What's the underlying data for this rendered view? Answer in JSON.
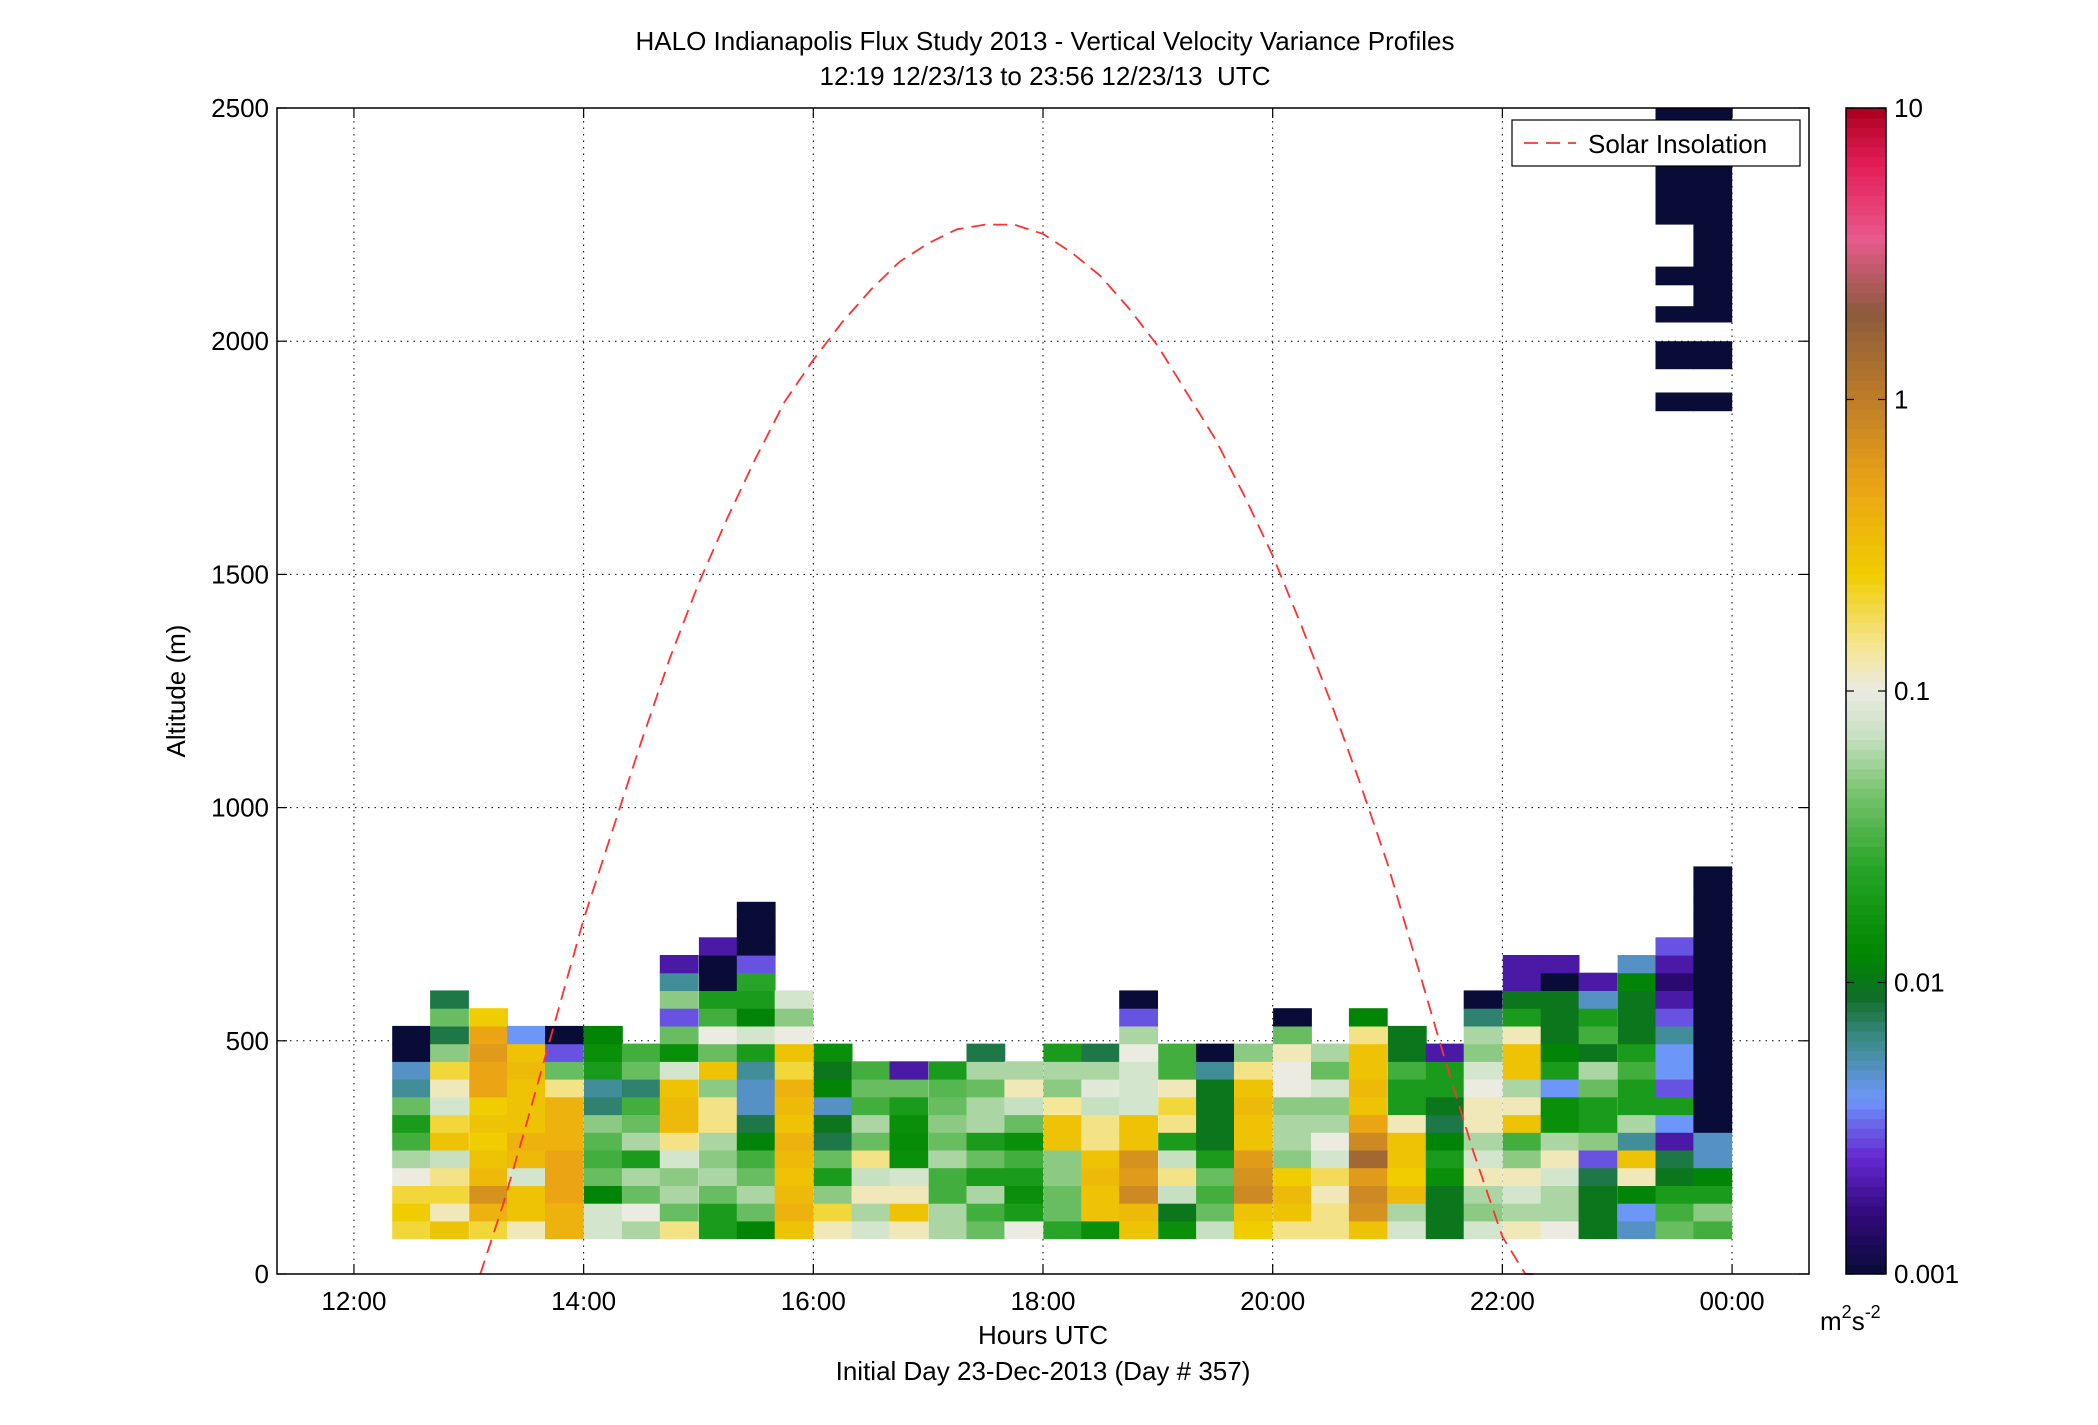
{
  "chart_data": {
    "type": "heatmap",
    "title": "HALO Indianapolis Flux Study 2013 - Vertical Velocity Variance Profiles",
    "subtitle": "12:19 12/23/13 to 23:56 12/23/13  UTC",
    "xlabel": "Hours UTC",
    "xlabel2": "Initial Day 23-Dec-2013 (Day # 357)",
    "ylabel": "Altitude (m)",
    "xlim": [
      11.33,
      24.67
    ],
    "ylim": [
      0,
      2500
    ],
    "x_ticks": [
      {
        "value": 12,
        "label": "12:00"
      },
      {
        "value": 14,
        "label": "14:00"
      },
      {
        "value": 16,
        "label": "16:00"
      },
      {
        "value": 18,
        "label": "18:00"
      },
      {
        "value": 20,
        "label": "20:00"
      },
      {
        "value": 22,
        "label": "22:00"
      },
      {
        "value": 24,
        "label": "00:00"
      }
    ],
    "y_ticks": [
      {
        "value": 0,
        "label": "0"
      },
      {
        "value": 500,
        "label": "500"
      },
      {
        "value": 1000,
        "label": "1000"
      },
      {
        "value": 1500,
        "label": "1500"
      },
      {
        "value": 2000,
        "label": "2000"
      },
      {
        "value": 2500,
        "label": "2500"
      }
    ],
    "grid": true,
    "legend": {
      "placement": "top-right",
      "entries": [
        {
          "label": "Solar Insolation",
          "color": "#ff3030",
          "style": "dashed"
        }
      ]
    },
    "colorbar": {
      "scale": "log",
      "range": [
        0.001,
        10
      ],
      "ticks": [
        {
          "value": 0.001,
          "label": "0.001"
        },
        {
          "value": 0.01,
          "label": "0.01"
        },
        {
          "value": 0.1,
          "label": "0.1"
        },
        {
          "value": 1,
          "label": "1"
        },
        {
          "value": 10,
          "label": "10"
        }
      ],
      "unit_base": "m",
      "unit_sup1": "2",
      "unit_mid": "s",
      "unit_sup2": "-2"
    },
    "time_bin_hours": 0.333,
    "altitude_bin_m": 38,
    "times": [
      12.5,
      12.83,
      13.17,
      13.5,
      13.83,
      14.17,
      14.5,
      14.83,
      15.17,
      15.5,
      15.83,
      16.17,
      16.5,
      16.83,
      17.17,
      17.5,
      17.83,
      18.17,
      18.5,
      18.83,
      19.17,
      19.5,
      19.83,
      20.17,
      20.5,
      20.83,
      21.17,
      21.5,
      21.83,
      22.17,
      22.5,
      22.83,
      23.17,
      23.5,
      23.83
    ],
    "profiles": [
      {
        "time": 12.5,
        "bottom_m": 76,
        "values": [
          0.2,
          0.25,
          0.2,
          0.1,
          0.06,
          0.03,
          0.02,
          0.04,
          0.006,
          0.005,
          0.001,
          0.001
        ]
      },
      {
        "time": 12.83,
        "bottom_m": 76,
        "values": [
          0.3,
          0.12,
          0.2,
          0.15,
          0.07,
          0.3,
          0.2,
          0.08,
          0.12,
          0.2,
          0.05,
          0.008,
          0.04,
          0.008
        ]
      },
      {
        "time": 13.17,
        "bottom_m": 76,
        "values": [
          0.2,
          0.4,
          0.7,
          0.35,
          0.3,
          0.25,
          0.3,
          0.25,
          0.5,
          0.5,
          0.6,
          0.5,
          0.25
        ]
      },
      {
        "time": 13.5,
        "bottom_m": 76,
        "values": [
          0.12,
          0.3,
          0.3,
          0.08,
          0.35,
          0.4,
          0.3,
          0.3,
          0.3,
          0.35,
          0.3,
          0.004
        ]
      },
      {
        "time": 13.83,
        "bottom_m": 76,
        "values": [
          0.4,
          0.4,
          0.5,
          0.5,
          0.5,
          0.4,
          0.4,
          0.4,
          0.15,
          0.04,
          0.003,
          0.001
        ]
      },
      {
        "time": 14.17,
        "bottom_m": 76,
        "values": [
          0.08,
          0.08,
          0.012,
          0.04,
          0.03,
          0.035,
          0.05,
          0.007,
          0.006,
          0.02,
          0.015,
          0.012
        ]
      },
      {
        "time": 14.5,
        "bottom_m": 76,
        "values": [
          0.06,
          0.1,
          0.04,
          0.06,
          0.02,
          0.06,
          0.04,
          0.03,
          0.007,
          0.04,
          0.03
        ]
      },
      {
        "time": 14.83,
        "bottom_m": 76,
        "values": [
          0.15,
          0.04,
          0.06,
          0.05,
          0.08,
          0.15,
          0.35,
          0.35,
          0.3,
          0.08,
          0.015,
          0.04,
          0.003,
          0.05,
          0.006,
          0.002
        ]
      },
      {
        "time": 15.17,
        "bottom_m": 76,
        "values": [
          0.02,
          0.02,
          0.04,
          0.06,
          0.05,
          0.06,
          0.15,
          0.15,
          0.05,
          0.3,
          0.04,
          0.1,
          0.03,
          0.02,
          0.001,
          0.001,
          0.002
        ]
      },
      {
        "time": 15.5,
        "bottom_m": 76,
        "values": [
          0.012,
          0.04,
          0.06,
          0.04,
          0.03,
          0.012,
          0.008,
          0.005,
          0.005,
          0.006,
          0.02,
          0.08,
          0.012,
          0.02,
          0.025,
          0.003,
          0.001,
          0.001,
          0.001
        ]
      },
      {
        "time": 15.83,
        "bottom_m": 76,
        "values": [
          0.3,
          0.4,
          0.35,
          0.3,
          0.35,
          0.4,
          0.3,
          0.35,
          0.4,
          0.2,
          0.3,
          0.1,
          0.05,
          0.08
        ]
      },
      {
        "time": 16.17,
        "bottom_m": 76,
        "values": [
          0.12,
          0.2,
          0.05,
          0.02,
          0.04,
          0.008,
          0.01,
          0.005,
          0.012,
          0.01,
          0.015
        ]
      },
      {
        "time": 16.5,
        "bottom_m": 76,
        "values": [
          0.08,
          0.06,
          0.12,
          0.07,
          0.15,
          0.04,
          0.06,
          0.03,
          0.04,
          0.03
        ]
      },
      {
        "time": 16.83,
        "bottom_m": 76,
        "values": [
          0.12,
          0.3,
          0.12,
          0.08,
          0.015,
          0.014,
          0.015,
          0.02,
          0.04,
          0.002
        ]
      },
      {
        "time": 17.17,
        "bottom_m": 76,
        "values": [
          0.06,
          0.06,
          0.03,
          0.03,
          0.06,
          0.04,
          0.05,
          0.04,
          0.035,
          0.02
        ]
      },
      {
        "time": 17.5,
        "bottom_m": 76,
        "values": [
          0.04,
          0.03,
          0.06,
          0.02,
          0.04,
          0.02,
          0.06,
          0.06,
          0.04,
          0.06,
          0.008
        ]
      },
      {
        "time": 17.83,
        "bottom_m": 76,
        "values": [
          0.1,
          0.02,
          0.015,
          0.02,
          0.03,
          0.015,
          0.04,
          0.07,
          0.12,
          0.06
        ]
      },
      {
        "time": 18.17,
        "bottom_m": 76,
        "values": [
          0.025,
          0.04,
          0.04,
          0.05,
          0.05,
          0.3,
          0.3,
          0.14,
          0.05,
          0.06,
          0.02
        ]
      },
      {
        "time": 18.5,
        "bottom_m": 76,
        "values": [
          0.015,
          0.3,
          0.3,
          0.35,
          0.3,
          0.15,
          0.15,
          0.07,
          0.09,
          0.06,
          0.008
        ]
      },
      {
        "time": 18.83,
        "bottom_m": 76,
        "values": [
          0.3,
          0.35,
          0.8,
          0.6,
          0.7,
          0.3,
          0.3,
          0.08,
          0.08,
          0.08,
          0.1,
          0.06,
          0.003,
          0.001
        ]
      },
      {
        "time": 19.17,
        "bottom_m": 76,
        "values": [
          0.015,
          0.01,
          0.07,
          0.15,
          0.07,
          0.02,
          0.15,
          0.2,
          0.12,
          0.03,
          0.03
        ]
      },
      {
        "time": 19.5,
        "bottom_m": 76,
        "values": [
          0.07,
          0.04,
          0.03,
          0.04,
          0.02,
          0.01,
          0.01,
          0.01,
          0.01,
          0.006,
          0.001
        ]
      },
      {
        "time": 19.83,
        "bottom_m": 76,
        "values": [
          0.25,
          0.3,
          0.8,
          0.7,
          0.6,
          0.3,
          0.3,
          0.35,
          0.3,
          0.15,
          0.05
        ]
      },
      {
        "time": 20.17,
        "bottom_m": 76,
        "values": [
          0.15,
          0.3,
          0.35,
          0.25,
          0.05,
          0.06,
          0.06,
          0.05,
          0.1,
          0.1,
          0.12,
          0.04,
          0.001
        ]
      },
      {
        "time": 20.5,
        "bottom_m": 76,
        "values": [
          0.15,
          0.15,
          0.12,
          0.18,
          0.08,
          0.1,
          0.06,
          0.05,
          0.08,
          0.04,
          0.06
        ]
      },
      {
        "time": 20.83,
        "bottom_m": 76,
        "values": [
          0.3,
          0.7,
          0.8,
          0.6,
          1.5,
          0.8,
          0.5,
          0.3,
          0.35,
          0.3,
          0.3,
          0.15,
          0.012
        ]
      },
      {
        "time": 21.17,
        "bottom_m": 76,
        "values": [
          0.08,
          0.06,
          0.35,
          0.25,
          0.3,
          0.3,
          0.12,
          0.02,
          0.02,
          0.03,
          0.01,
          0.01
        ]
      },
      {
        "time": 21.5,
        "bottom_m": 76,
        "values": [
          0.01,
          0.01,
          0.01,
          0.015,
          0.02,
          0.012,
          0.008,
          0.01,
          0.02,
          0.02,
          0.002
        ]
      },
      {
        "time": 21.83,
        "bottom_m": 76,
        "values": [
          0.08,
          0.05,
          0.06,
          0.12,
          0.08,
          0.06,
          0.12,
          0.12,
          0.1,
          0.08,
          0.05,
          0.06,
          0.007,
          0.001
        ]
      },
      {
        "time": 22.17,
        "bottom_m": 76,
        "values": [
          0.12,
          0.06,
          0.08,
          0.12,
          0.05,
          0.03,
          0.3,
          0.12,
          0.06,
          0.3,
          0.3,
          0.12,
          0.02,
          0.01,
          0.002,
          0.002
        ]
      },
      {
        "time": 22.5,
        "bottom_m": 76,
        "values": [
          0.1,
          0.06,
          0.06,
          0.08,
          0.12,
          0.06,
          0.015,
          0.015,
          0.004,
          0.02,
          0.012,
          0.01,
          0.01,
          0.01,
          0.001,
          0.002
        ]
      },
      {
        "time": 22.83,
        "bottom_m": 76,
        "values": [
          0.01,
          0.01,
          0.01,
          0.008,
          0.003,
          0.05,
          0.02,
          0.02,
          0.04,
          0.06,
          0.01,
          0.03,
          0.02,
          0.005,
          0.002
        ]
      },
      {
        "time": 23.17,
        "bottom_m": 76,
        "values": [
          0.005,
          0.004,
          0.012,
          0.12,
          0.3,
          0.006,
          0.06,
          0.02,
          0.02,
          0.03,
          0.02,
          0.01,
          0.01,
          0.01,
          0.012,
          0.005
        ]
      },
      {
        "time": 23.5,
        "bottom_m": 76,
        "values": [
          0.04,
          0.03,
          0.02,
          0.01,
          0.008,
          0.002,
          0.004,
          0.02,
          0.003,
          0.004,
          0.004,
          0.006,
          0.003,
          0.002,
          0.0015,
          0.002,
          0.003
        ]
      },
      {
        "time": 23.83,
        "bottom_m": 76,
        "values": [
          0.03,
          0.05,
          0.02,
          0.012,
          0.005,
          0.005,
          0.001,
          0.001,
          0.001,
          0.001,
          0.001,
          0.001,
          0.001,
          0.001,
          0.001,
          0.001,
          0.001,
          0.001,
          0.001,
          0.001,
          0.001
        ]
      }
    ],
    "upper_returns": [
      {
        "time": 23.5,
        "ranges": [
          [
            1850,
            1890
          ],
          [
            1940,
            2000
          ],
          [
            2040,
            2075
          ],
          [
            2120,
            2160
          ],
          [
            2250,
            2500
          ]
        ]
      },
      {
        "time": 23.83,
        "ranges": [
          [
            1850,
            1890
          ],
          [
            1940,
            2000
          ],
          [
            2040,
            2500
          ]
        ]
      }
    ],
    "series": [
      {
        "name": "Solar Insolation",
        "type": "line",
        "style": "dashed",
        "color": "#ff3030",
        "x": [
          13.1,
          13.3,
          13.5,
          13.75,
          14,
          14.25,
          14.5,
          14.75,
          15,
          15.25,
          15.5,
          15.75,
          16,
          16.25,
          16.5,
          16.75,
          17,
          17.25,
          17.5,
          17.75,
          18,
          18.25,
          18.5,
          18.75,
          19,
          19.25,
          19.5,
          19.75,
          20,
          20.25,
          20.5,
          20.75,
          21,
          21.25,
          21.5,
          21.75,
          22,
          22.2,
          22.3
        ],
        "y": [
          0,
          150,
          320,
          540,
          760,
          950,
          1140,
          1320,
          1480,
          1620,
          1750,
          1870,
          1960,
          2040,
          2110,
          2170,
          2210,
          2240,
          2250,
          2250,
          2230,
          2190,
          2140,
          2070,
          1990,
          1890,
          1790,
          1670,
          1540,
          1390,
          1230,
          1060,
          880,
          670,
          460,
          260,
          80,
          0,
          0
        ]
      }
    ]
  }
}
